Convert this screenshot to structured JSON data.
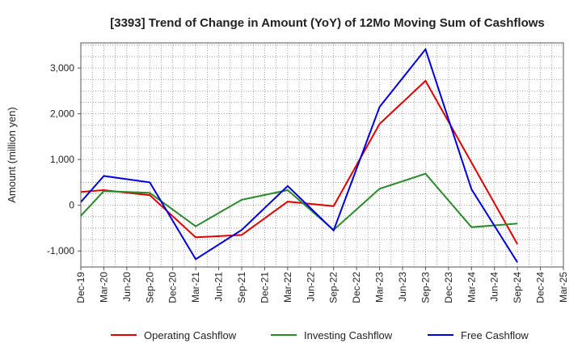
{
  "chart_data": {
    "type": "line",
    "title": "[3393]  Trend of Change in Amount (YoY) of 12Mo Moving Sum of Cashflows",
    "xlabel": "",
    "ylabel": "Amount (million yen)",
    "categories": [
      "Dec-19",
      "Mar-20",
      "Jun-20",
      "Sep-20",
      "Dec-20",
      "Mar-21",
      "Jun-21",
      "Sep-21",
      "Dec-21",
      "Mar-22",
      "Jun-22",
      "Sep-22",
      "Dec-22",
      "Mar-23",
      "Jun-23",
      "Sep-23",
      "Dec-23",
      "Mar-24",
      "Jun-24",
      "Sep-24",
      "Dec-24",
      "Mar-25"
    ],
    "ylim": [
      -1350,
      3550
    ],
    "yticks": [
      -1000,
      0,
      1000,
      2000,
      3000
    ],
    "ytick_labels": [
      "-1,000",
      "0",
      "1,000",
      "2,000",
      "3,000"
    ],
    "grid": true,
    "legend_position": "bottom",
    "series": [
      {
        "name": "Operating Cashflow",
        "color": "#e00000",
        "values": [
          290,
          330,
          null,
          220,
          null,
          -700,
          null,
          -650,
          null,
          80,
          null,
          -20,
          null,
          1780,
          null,
          2720,
          null,
          null,
          null,
          -850,
          null,
          null
        ]
      },
      {
        "name": "Investing Cashflow",
        "color": "#2a8a2a",
        "values": [
          -230,
          310,
          null,
          270,
          null,
          -460,
          null,
          120,
          null,
          330,
          null,
          -540,
          null,
          360,
          null,
          690,
          null,
          -480,
          null,
          -400,
          null,
          null
        ]
      },
      {
        "name": "Free Cashflow",
        "color": "#0000dd",
        "values": [
          70,
          640,
          null,
          500,
          null,
          -1180,
          null,
          -540,
          null,
          420,
          null,
          -550,
          null,
          2150,
          null,
          3410,
          null,
          350,
          null,
          -1250,
          null,
          null
        ]
      }
    ]
  }
}
